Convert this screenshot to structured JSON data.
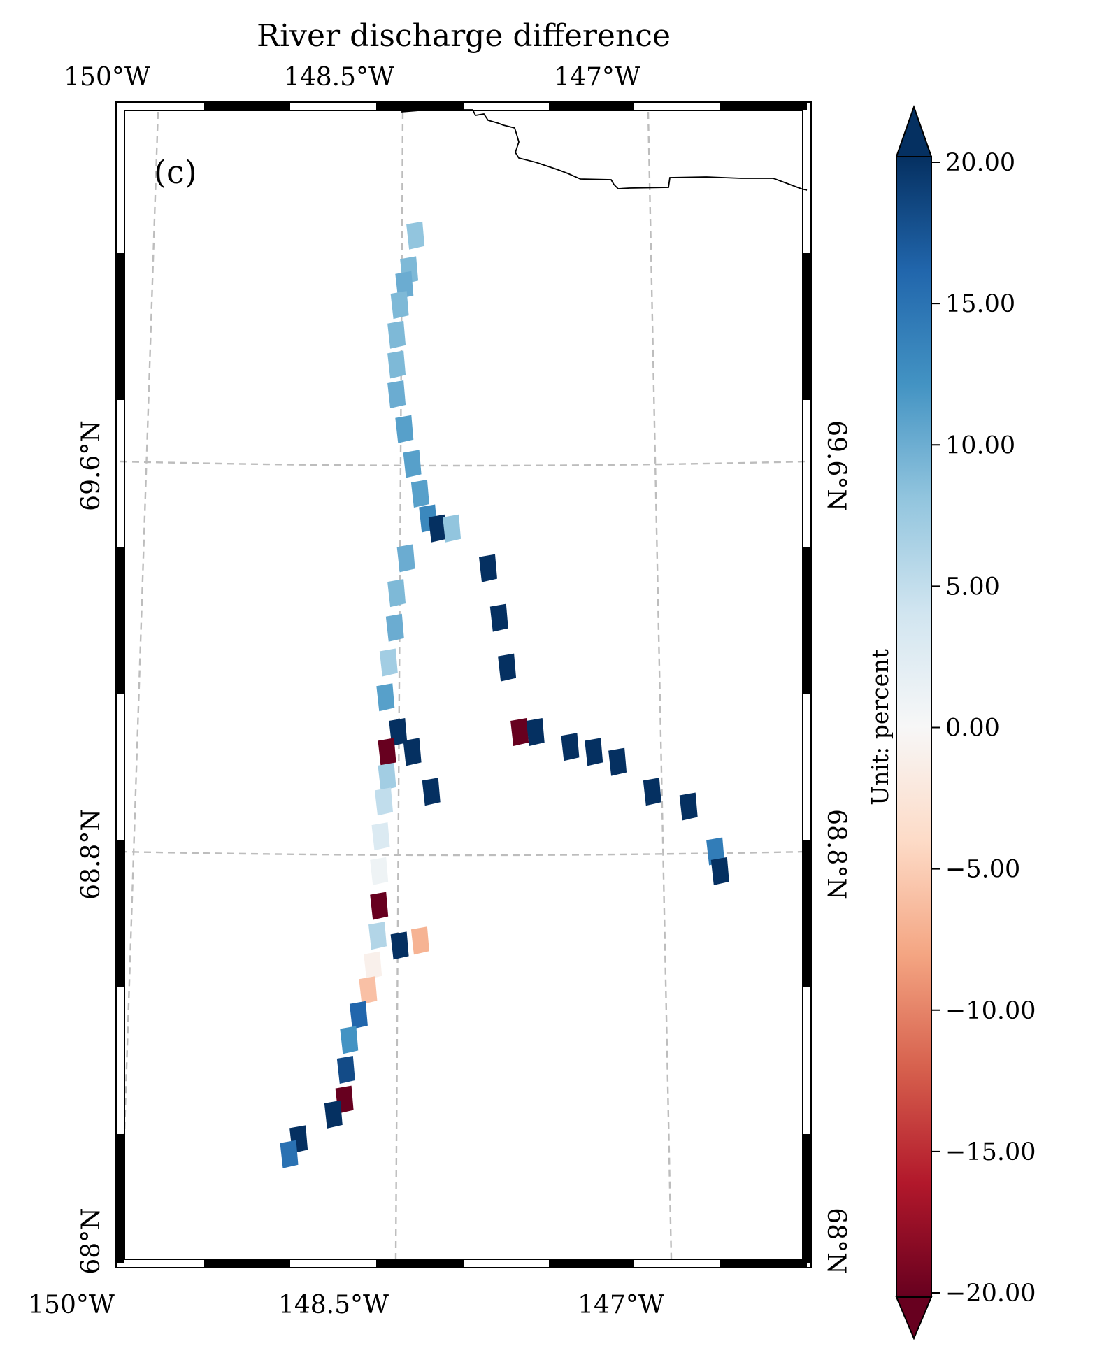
{
  "title": "River discharge difference",
  "panel_label": "(c)",
  "colorbar": {
    "label": "Unit: percent",
    "ticks": [
      "20.00",
      "15.00",
      "10.00",
      "5.00",
      "0.00",
      "−5.00",
      "−10.00",
      "−15.00",
      "−20.00"
    ],
    "tick_values": [
      20,
      15,
      10,
      5,
      0,
      -5,
      -10,
      -15,
      -20
    ],
    "range": [
      -20,
      20
    ],
    "extend": "both",
    "cmap_stops": [
      "#67001f",
      "#b2182b",
      "#d6604d",
      "#f4a582",
      "#fddbc7",
      "#f7f7f7",
      "#d1e5f0",
      "#92c5de",
      "#4393c3",
      "#2166ac",
      "#053061"
    ]
  },
  "axes": {
    "top_lon_labels": [
      "150°W",
      "148.5°W",
      "147°W"
    ],
    "bottom_lon_labels": [
      "150°W",
      "148.5°W",
      "147°W"
    ],
    "left_lat_labels": [
      "69.6°N",
      "68.8°N",
      "68°N"
    ],
    "right_lat_labels": [
      "69.6°N",
      "68.8°N",
      "68°N"
    ],
    "gridlines": "dashed grey"
  },
  "chart_data": {
    "type": "heatmap",
    "title": "River discharge difference",
    "colorbar_label": "Unit: percent",
    "value_range": [
      -20,
      20
    ],
    "lon_ticks": [
      "150°W",
      "148.5°W",
      "147°W"
    ],
    "lat_ticks": [
      "69.6°N",
      "68.8°N",
      "68°N"
    ],
    "river_cells": [
      {
        "lon": -148.28,
        "lat": 70.02,
        "value": 8
      },
      {
        "lon": -148.32,
        "lat": 69.95,
        "value": 9
      },
      {
        "lon": -148.35,
        "lat": 69.92,
        "value": 10
      },
      {
        "lon": -148.38,
        "lat": 69.88,
        "value": 9
      },
      {
        "lon": -148.4,
        "lat": 69.82,
        "value": 9
      },
      {
        "lon": -148.4,
        "lat": 69.76,
        "value": 9
      },
      {
        "lon": -148.4,
        "lat": 69.7,
        "value": 10
      },
      {
        "lon": -148.35,
        "lat": 69.63,
        "value": 11
      },
      {
        "lon": -148.3,
        "lat": 69.56,
        "value": 11
      },
      {
        "lon": -148.25,
        "lat": 69.5,
        "value": 11
      },
      {
        "lon": -148.2,
        "lat": 69.45,
        "value": 13
      },
      {
        "lon": -148.14,
        "lat": 69.43,
        "value": 20
      },
      {
        "lon": -148.05,
        "lat": 69.43,
        "value": 8
      },
      {
        "lon": -148.34,
        "lat": 69.37,
        "value": 10
      },
      {
        "lon": -148.4,
        "lat": 69.3,
        "value": 9
      },
      {
        "lon": -148.41,
        "lat": 69.23,
        "value": 10
      },
      {
        "lon": -148.45,
        "lat": 69.16,
        "value": 7
      },
      {
        "lon": -148.47,
        "lat": 69.09,
        "value": 11
      },
      {
        "lon": -148.39,
        "lat": 69.02,
        "value": 20
      },
      {
        "lon": -148.46,
        "lat": 68.98,
        "value": -20
      },
      {
        "lon": -148.46,
        "lat": 68.93,
        "value": 7
      },
      {
        "lon": -148.48,
        "lat": 68.88,
        "value": 5
      },
      {
        "lon": -148.5,
        "lat": 68.81,
        "value": 3
      },
      {
        "lon": -148.51,
        "lat": 68.74,
        "value": 1
      },
      {
        "lon": -148.51,
        "lat": 68.67,
        "value": -20
      },
      {
        "lon": -148.52,
        "lat": 68.61,
        "value": 6
      },
      {
        "lon": -148.55,
        "lat": 68.55,
        "value": -1
      },
      {
        "lon": -148.58,
        "lat": 68.5,
        "value": -6
      },
      {
        "lon": -148.64,
        "lat": 68.45,
        "value": 16
      },
      {
        "lon": -148.7,
        "lat": 68.4,
        "value": 12
      },
      {
        "lon": -148.72,
        "lat": 68.34,
        "value": 18
      },
      {
        "lon": -148.73,
        "lat": 68.28,
        "value": -20
      },
      {
        "lon": -148.8,
        "lat": 68.25,
        "value": 20
      },
      {
        "lon": -149.02,
        "lat": 68.2,
        "value": 20
      },
      {
        "lon": -149.08,
        "lat": 68.17,
        "value": 15
      },
      {
        "lon": -148.38,
        "lat": 68.59,
        "value": 20
      },
      {
        "lon": -148.25,
        "lat": 68.6,
        "value": -7
      },
      {
        "lon": -147.82,
        "lat": 69.35,
        "value": 20
      },
      {
        "lon": -147.75,
        "lat": 69.25,
        "value": 20
      },
      {
        "lon": -147.7,
        "lat": 69.15,
        "value": 20
      },
      {
        "lon": -147.62,
        "lat": 69.02,
        "value": -20
      },
      {
        "lon": -147.52,
        "lat": 69.02,
        "value": 20
      },
      {
        "lon": -147.3,
        "lat": 68.99,
        "value": 20
      },
      {
        "lon": -147.15,
        "lat": 68.98,
        "value": 20
      },
      {
        "lon": -147.0,
        "lat": 68.96,
        "value": 20
      },
      {
        "lon": -146.78,
        "lat": 68.9,
        "value": 20
      },
      {
        "lon": -146.55,
        "lat": 68.87,
        "value": 20
      },
      {
        "lon": -146.38,
        "lat": 68.78,
        "value": 14
      },
      {
        "lon": -146.35,
        "lat": 68.74,
        "value": 20
      },
      {
        "lon": -148.3,
        "lat": 68.98,
        "value": 20
      },
      {
        "lon": -148.18,
        "lat": 68.9,
        "value": 20
      }
    ]
  }
}
